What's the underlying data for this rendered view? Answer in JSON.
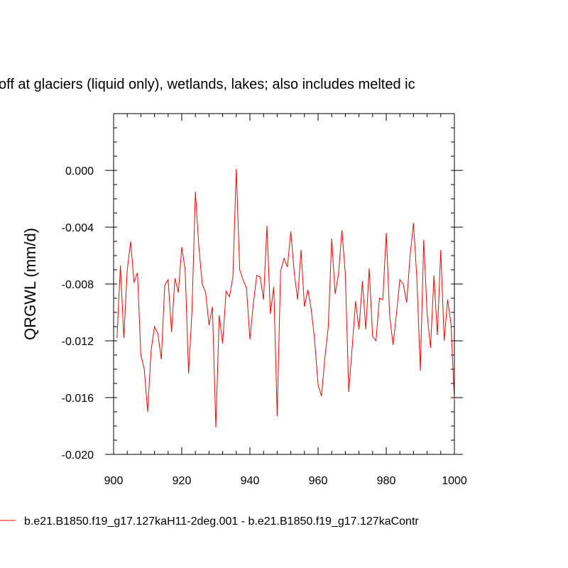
{
  "chart_data": {
    "type": "line",
    "title": "off at glaciers (liquid only), wetlands, lakes; also includes melted ic",
    "xlabel": "",
    "ylabel": "QRGWL  (mm/d)",
    "xlim": [
      900,
      1000
    ],
    "ylim": [
      -0.02,
      0.004
    ],
    "xticks": [
      900,
      920,
      940,
      960,
      980,
      1000
    ],
    "xtick_labels": [
      "900",
      "920",
      "940",
      "960",
      "980",
      "1000"
    ],
    "yticks": [
      0.0,
      -0.004,
      -0.008,
      -0.012,
      -0.016,
      -0.02
    ],
    "ytick_labels": [
      "0.000",
      "-0.004",
      "-0.008",
      "-0.012",
      "-0.016",
      "-0.020"
    ],
    "grid": false,
    "legend_position": "bottom",
    "series": [
      {
        "name": "b.e21.B1850.f19_g17.127kaH11-2deg.001 - b.e21.B1850.f19_g17.127kaContr",
        "color": "#ff0000",
        "x": [
          901,
          902,
          903,
          904,
          905,
          906,
          907,
          908,
          909,
          910,
          911,
          912,
          913,
          914,
          915,
          916,
          917,
          918,
          919,
          920,
          921,
          922,
          923,
          924,
          925,
          926,
          927,
          928,
          929,
          930,
          931,
          932,
          933,
          934,
          935,
          936,
          937,
          938,
          939,
          940,
          941,
          942,
          943,
          944,
          945,
          946,
          947,
          948,
          949,
          950,
          951,
          952,
          953,
          954,
          955,
          956,
          957,
          958,
          959,
          960,
          961,
          962,
          963,
          964,
          965,
          966,
          967,
          968,
          969,
          970,
          971,
          972,
          973,
          974,
          975,
          976,
          977,
          978,
          979,
          980,
          981,
          982,
          983,
          984,
          985,
          986,
          987,
          988,
          989,
          990,
          991,
          992,
          993,
          994,
          995,
          996,
          997,
          998,
          999,
          1000
        ],
        "values": [
          -0.0118,
          -0.0067,
          -0.0118,
          -0.007,
          -0.005,
          -0.0079,
          -0.0072,
          -0.013,
          -0.014,
          -0.017,
          -0.0127,
          -0.011,
          -0.0115,
          -0.0133,
          -0.0081,
          -0.0077,
          -0.0114,
          -0.0076,
          -0.0086,
          -0.0054,
          -0.007,
          -0.0143,
          -0.0099,
          -0.0015,
          -0.0053,
          -0.008,
          -0.0086,
          -0.0109,
          -0.0096,
          -0.0181,
          -0.0102,
          -0.0122,
          -0.0085,
          -0.0089,
          -0.0075,
          0.0001,
          -0.007,
          -0.0077,
          -0.0083,
          -0.0119,
          -0.0094,
          -0.0074,
          -0.0075,
          -0.0091,
          -0.0039,
          -0.0101,
          -0.0082,
          -0.0173,
          -0.0071,
          -0.0062,
          -0.0068,
          -0.0043,
          -0.0072,
          -0.0091,
          -0.0056,
          -0.0096,
          -0.0084,
          -0.0098,
          -0.012,
          -0.0151,
          -0.0159,
          -0.0132,
          -0.011,
          -0.0048,
          -0.0087,
          -0.0073,
          -0.0042,
          -0.0073,
          -0.0156,
          -0.0125,
          -0.0092,
          -0.0112,
          -0.0078,
          -0.0112,
          -0.0069,
          -0.0117,
          -0.012,
          -0.009,
          -0.0091,
          -0.0044,
          -0.0102,
          -0.0123,
          -0.0101,
          -0.0077,
          -0.008,
          -0.0093,
          -0.006,
          -0.0037,
          -0.0077,
          -0.0141,
          -0.0049,
          -0.0101,
          -0.0125,
          -0.0074,
          -0.0116,
          -0.0056,
          -0.012,
          -0.0091,
          -0.0108,
          -0.0162
        ]
      }
    ]
  }
}
